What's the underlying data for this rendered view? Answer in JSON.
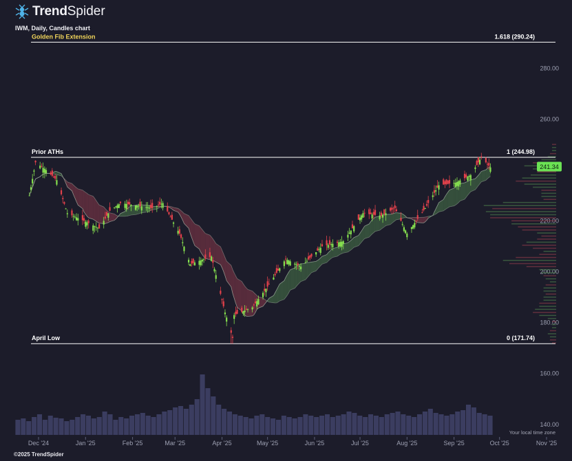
{
  "header": {
    "logo_bold": "Trend",
    "logo_light": "Spider",
    "chart_title": "IWM, Daily, Candles chart",
    "copyright": "©2025 TrendSpider",
    "time_zone": "Your local time zone"
  },
  "colors": {
    "background": "#1c1c2a",
    "up": "#86e04f",
    "down": "#e2414b",
    "golden": "#f0d45a",
    "white_line": "#ffffff",
    "volume": "#3b3d60",
    "price_badge": "#6be254",
    "ribbon_up": "#4b7a4b",
    "ribbon_down": "#8a3a4a"
  },
  "chart_data": {
    "type": "candlestick",
    "ticker": "IWM",
    "timeframe": "Daily",
    "y_axis": {
      "ticks": [
        280,
        260,
        220,
        200,
        180,
        160,
        140
      ],
      "tick_labels": [
        "280.00",
        "260.00",
        "220.00",
        "200.00",
        "180.00",
        "160.00",
        "140.00"
      ],
      "range": [
        134,
        296
      ]
    },
    "x_axis": {
      "labels": [
        "Dec '24",
        "Jan '25",
        "Feb '25",
        "Mar '25",
        "Apr '25",
        "May '25",
        "Jun '25",
        "Jul '25",
        "Aug '25",
        "Sep '25",
        "Oct '25",
        "Nov '25"
      ],
      "dates": [
        "2024-12-01",
        "2025-01-01",
        "2025-02-01",
        "2025-03-01",
        "2025-04-01",
        "2025-05-01",
        "2025-06-01",
        "2025-07-01",
        "2025-08-01",
        "2025-09-01",
        "2025-10-01",
        "2025-11-01"
      ]
    },
    "last_price": "241.34",
    "fib_levels": [
      {
        "name": "Golden Fib Extension",
        "ratio_label": "1.618 (290.24)",
        "value": 290.24,
        "color": "golden"
      },
      {
        "name": "Prior ATHs",
        "ratio_label": "1 (244.98)",
        "value": 244.98,
        "color": "white"
      },
      {
        "name": "April Low",
        "ratio_label": "0 (171.74)",
        "value": 171.74,
        "color": "white"
      }
    ],
    "price_path": [
      [
        "2024-11-25",
        230
      ],
      [
        "2024-11-29",
        243
      ],
      [
        "2024-12-06",
        240
      ],
      [
        "2024-12-13",
        236
      ],
      [
        "2024-12-20",
        223
      ],
      [
        "2024-12-31",
        220
      ],
      [
        "2025-01-10",
        217
      ],
      [
        "2025-01-17",
        224
      ],
      [
        "2025-01-24",
        227
      ],
      [
        "2025-02-04",
        226
      ],
      [
        "2025-02-14",
        225
      ],
      [
        "2025-02-21",
        227
      ],
      [
        "2025-03-04",
        215
      ],
      [
        "2025-03-11",
        203
      ],
      [
        "2025-03-25",
        206
      ],
      [
        "2025-04-03",
        184
      ],
      [
        "2025-04-08",
        174
      ],
      [
        "2025-04-09",
        183
      ],
      [
        "2025-04-21",
        186
      ],
      [
        "2025-05-02",
        195
      ],
      [
        "2025-05-13",
        205
      ],
      [
        "2025-05-23",
        202
      ],
      [
        "2025-06-06",
        210
      ],
      [
        "2025-06-20",
        212
      ],
      [
        "2025-07-03",
        223
      ],
      [
        "2025-07-15",
        222
      ],
      [
        "2025-07-24",
        225
      ],
      [
        "2025-08-01",
        215
      ],
      [
        "2025-08-13",
        225
      ],
      [
        "2025-08-22",
        234
      ],
      [
        "2025-09-02",
        235
      ],
      [
        "2025-09-12",
        238
      ],
      [
        "2025-09-19",
        245
      ],
      [
        "2025-09-25",
        241
      ]
    ],
    "volume_series": [
      22,
      24,
      20,
      26,
      30,
      22,
      28,
      25,
      24,
      20,
      22,
      26,
      30,
      28,
      24,
      26,
      34,
      30,
      22,
      26,
      24,
      28,
      30,
      32,
      28,
      26,
      30,
      34,
      36,
      40,
      42,
      38,
      44,
      52,
      88,
      68,
      56,
      44,
      38,
      34,
      30,
      28,
      26,
      24,
      28,
      30,
      26,
      24,
      22,
      28,
      26,
      24,
      26,
      30,
      28,
      26,
      28,
      30,
      26,
      28,
      30,
      34,
      32,
      28,
      26,
      30,
      28,
      26,
      30,
      32,
      34,
      30,
      28,
      26,
      30,
      34,
      38,
      32,
      30,
      28,
      30,
      34,
      36,
      44,
      40,
      32,
      30,
      28
    ]
  }
}
